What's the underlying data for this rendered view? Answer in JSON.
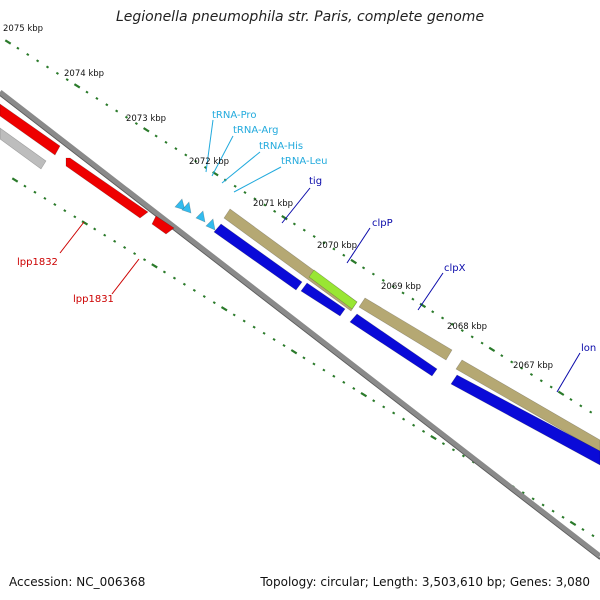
{
  "title": "Legionella pneumophila str. Paris, complete genome",
  "footer": {
    "accession": "Accession: NC_006368",
    "summary": "Topology: circular; Length: 3,503,610 bp; Genes: 3,080"
  },
  "scale_labels": [
    "2075 kbp",
    "2074 kbp",
    "2073 kbp",
    "2072 kbp",
    "2071 kbp",
    "2070 kbp",
    "2069 kbp",
    "2068 kbp",
    "2067 kbp"
  ],
  "features": {
    "trna": [
      "tRNA-Pro",
      "tRNA-Arg",
      "tRNA-His",
      "tRNA-Leu"
    ],
    "blue": [
      "tig",
      "clpP",
      "clpX",
      "lon"
    ],
    "red": [
      "lpp1832",
      "lpp1831"
    ]
  },
  "colors": {
    "tick": "#2a7a2a",
    "backbone": "#8a8a8a",
    "backbone_shadow": "#5a5a5a",
    "red_gene": "#ee0000",
    "grey_gene": "#bdbdbd",
    "blue_gene": "#0a0ad8",
    "olive_gene": "#b5a873",
    "green_gene": "#99e633",
    "trna_gene": "#33bbee",
    "trna_label": "#22aadd",
    "blue_label": "#0a0aaa",
    "red_label": "#cc0000"
  }
}
